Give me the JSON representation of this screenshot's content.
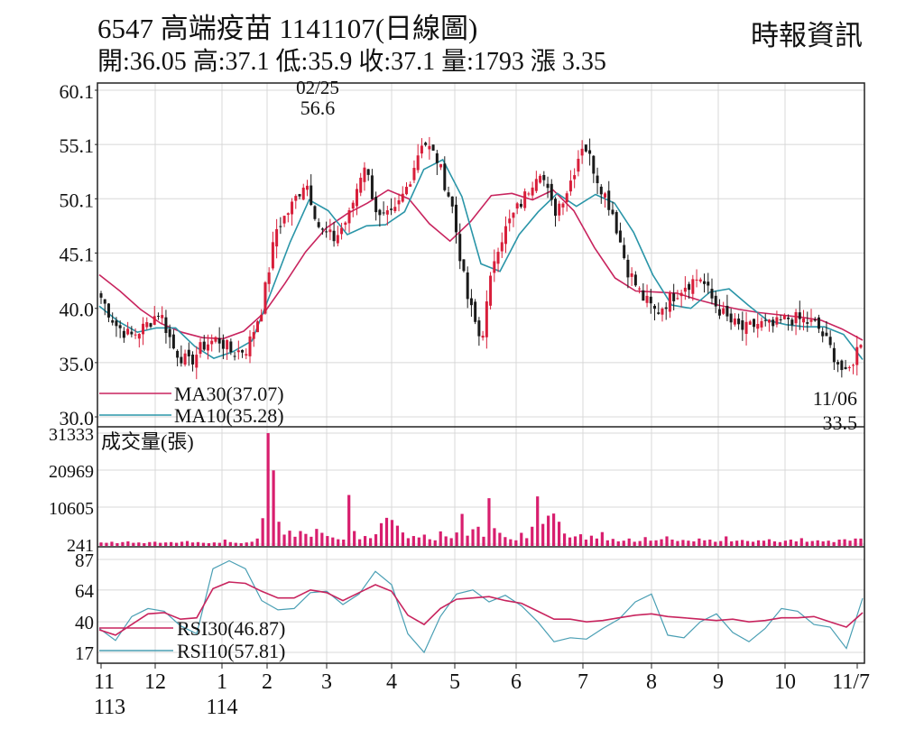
{
  "header": {
    "title": "6547  高端疫苗 1141107(日線圖)",
    "source": "時報資訊",
    "ohlc": "開:36.05 高:37.1 低:35.9 收:37.1 量:1793 漲 3.35"
  },
  "colors": {
    "up": "#d81e3a",
    "down": "#1a1a1a",
    "ma30": "#c8245e",
    "ma10": "#2a95a8",
    "volume": "#d81e6e",
    "rsi30": "#c8245e",
    "rsi10": "#4a9fb4"
  },
  "chart_data": [
    {
      "type": "candlestick",
      "panel": "price",
      "ylim": [
        30.0,
        60.1
      ],
      "yticks": [
        "60.1",
        "55.1",
        "50.1",
        "45.1",
        "40.0",
        "35.0",
        "30.0"
      ],
      "ytick_values": [
        60.1,
        55.1,
        50.1,
        45.1,
        40.0,
        35.0,
        30.0
      ],
      "x_ticks": [
        {
          "label": "11",
          "sub": "113"
        },
        {
          "label": "12",
          "sub": ""
        },
        {
          "label": "1",
          "sub": "114"
        },
        {
          "label": "2",
          "sub": ""
        },
        {
          "label": "3",
          "sub": ""
        },
        {
          "label": "4",
          "sub": ""
        },
        {
          "label": "5",
          "sub": ""
        },
        {
          "label": "6",
          "sub": ""
        },
        {
          "label": "7",
          "sub": ""
        },
        {
          "label": "8",
          "sub": ""
        },
        {
          "label": "9",
          "sub": ""
        },
        {
          "label": "10",
          "sub": ""
        },
        {
          "label": "11/7",
          "sub": ""
        }
      ],
      "annotations": {
        "high": {
          "date": "02/25",
          "value": "56.6"
        },
        "low": {
          "date": "11/06",
          "value": "33.5"
        }
      },
      "legend": [
        {
          "name": "MA30",
          "label": "MA30(37.07)"
        },
        {
          "name": "MA10",
          "label": "MA10(35.28)"
        }
      ],
      "close_path": [
        41.0,
        38.5,
        37.4,
        38.3,
        39.8,
        36.2,
        34.9,
        36.6,
        37.2,
        35.9,
        36.3,
        40.1,
        47.3,
        49.3,
        51.9,
        47.1,
        46.4,
        48.6,
        53.5,
        48.2,
        48.5,
        51.4,
        55.6,
        53.7,
        49.6,
        41.3,
        36.9,
        45.4,
        48.1,
        50.3,
        53.1,
        48.8,
        51.2,
        55.4,
        51.9,
        48.9,
        43.7,
        41.1,
        39.6,
        41.0,
        42.2,
        42.9,
        40.4,
        38.8,
        38.0,
        38.6,
        38.3,
        39.1,
        38.9,
        38.4,
        36.1,
        33.6,
        37.1
      ],
      "ma30_path": [
        43.1,
        41.6,
        39.9,
        38.6,
        37.8,
        37.3,
        37.2,
        37.9,
        39.6,
        42.3,
        45.2,
        47.4,
        48.7,
        49.7,
        50.9,
        50.1,
        47.8,
        46.2,
        48.0,
        50.4,
        50.6,
        50.0,
        50.9,
        49.0,
        45.6,
        42.8,
        41.6,
        41.5,
        41.4,
        40.8,
        40.3,
        39.9,
        39.6,
        39.4,
        39.2,
        38.9,
        38.1,
        37.07
      ],
      "ma10_path": [
        40.2,
        38.8,
        37.8,
        38.2,
        38.2,
        36.5,
        35.4,
        36.0,
        37.0,
        41.5,
        46.1,
        50.0,
        49.0,
        46.8,
        47.6,
        47.7,
        48.9,
        52.8,
        53.7,
        50.3,
        44.1,
        43.4,
        46.8,
        48.9,
        50.6,
        49.4,
        50.5,
        49.7,
        47.0,
        43.1,
        40.3,
        40.0,
        41.5,
        41.8,
        40.3,
        38.9,
        38.5,
        38.3,
        38.3,
        37.6,
        35.28
      ]
    },
    {
      "type": "bar",
      "panel": "volume",
      "title": "成交量(張)",
      "ylim": [
        241,
        31333
      ],
      "yticks": [
        "31333",
        "20969",
        "10605",
        "241"
      ],
      "ytick_values": [
        31333,
        20969,
        10605,
        241
      ],
      "values": [
        700,
        600,
        900,
        500,
        800,
        1000,
        600,
        700,
        500,
        800,
        900,
        600,
        700,
        800,
        600,
        900,
        1100,
        700,
        800,
        600,
        500,
        700,
        600,
        1500,
        800,
        600,
        500,
        700,
        900,
        1800,
        7500,
        31333,
        20900,
        6500,
        2900,
        4000,
        2300,
        3900,
        3100,
        2300,
        4500,
        3400,
        2500,
        2100,
        1600,
        1500,
        14000,
        3900,
        1600,
        2500,
        1900,
        3000,
        6100,
        7600,
        7000,
        5400,
        3500,
        1900,
        2500,
        2100,
        2900,
        1600,
        1300,
        3800,
        2400,
        1900,
        3500,
        8700,
        2600,
        4400,
        5100,
        2300,
        13100,
        4700,
        3400,
        2200,
        1600,
        1300,
        3400,
        1900,
        5100,
        13600,
        5900,
        8200,
        8800,
        6500,
        3200,
        2100,
        2400,
        3000,
        1500,
        2600,
        1800,
        3600,
        1300,
        1700,
        1000,
        1200,
        1800,
        900,
        1100,
        2200,
        1200,
        1300,
        1600,
        2400,
        1500,
        1100,
        1400,
        1200,
        1000,
        1800,
        1300,
        1500,
        900,
        1100,
        2400,
        1000,
        1200,
        1400,
        1100,
        900,
        1300,
        1200,
        1600,
        1000,
        800,
        1200,
        1500,
        1000,
        1900,
        900,
        1100,
        1300,
        1000,
        1200,
        800,
        1500,
        1600,
        1200,
        1800,
        1793
      ]
    },
    {
      "type": "line",
      "panel": "rsi",
      "ylim": [
        17,
        87
      ],
      "yticks": [
        "87",
        "64",
        "40",
        "17"
      ],
      "ytick_values": [
        87,
        64,
        40,
        17
      ],
      "series": [
        {
          "name": "RSI30",
          "label": "RSI30(46.87)",
          "values": [
            34,
            30,
            38,
            46,
            47,
            42,
            43,
            65,
            70,
            69,
            63,
            58,
            58,
            64,
            62,
            56,
            62,
            68,
            63,
            45,
            38,
            50,
            57,
            58,
            59,
            56,
            54,
            48,
            42,
            42,
            40,
            41,
            43,
            45,
            46,
            44,
            43,
            42,
            41,
            42,
            40,
            41,
            43,
            43,
            44,
            40,
            36,
            46.87
          ]
        },
        {
          "name": "RSI10",
          "label": "RSI10(57.81)",
          "values": [
            35,
            26,
            44,
            50,
            48,
            37,
            31,
            80,
            86,
            80,
            56,
            49,
            50,
            62,
            63,
            53,
            61,
            78,
            68,
            31,
            17,
            44,
            61,
            64,
            55,
            60,
            52,
            40,
            25,
            28,
            27,
            35,
            42,
            55,
            61,
            30,
            28,
            40,
            46,
            32,
            25,
            35,
            50,
            48,
            38,
            36,
            20,
            57.81
          ]
        }
      ]
    }
  ]
}
